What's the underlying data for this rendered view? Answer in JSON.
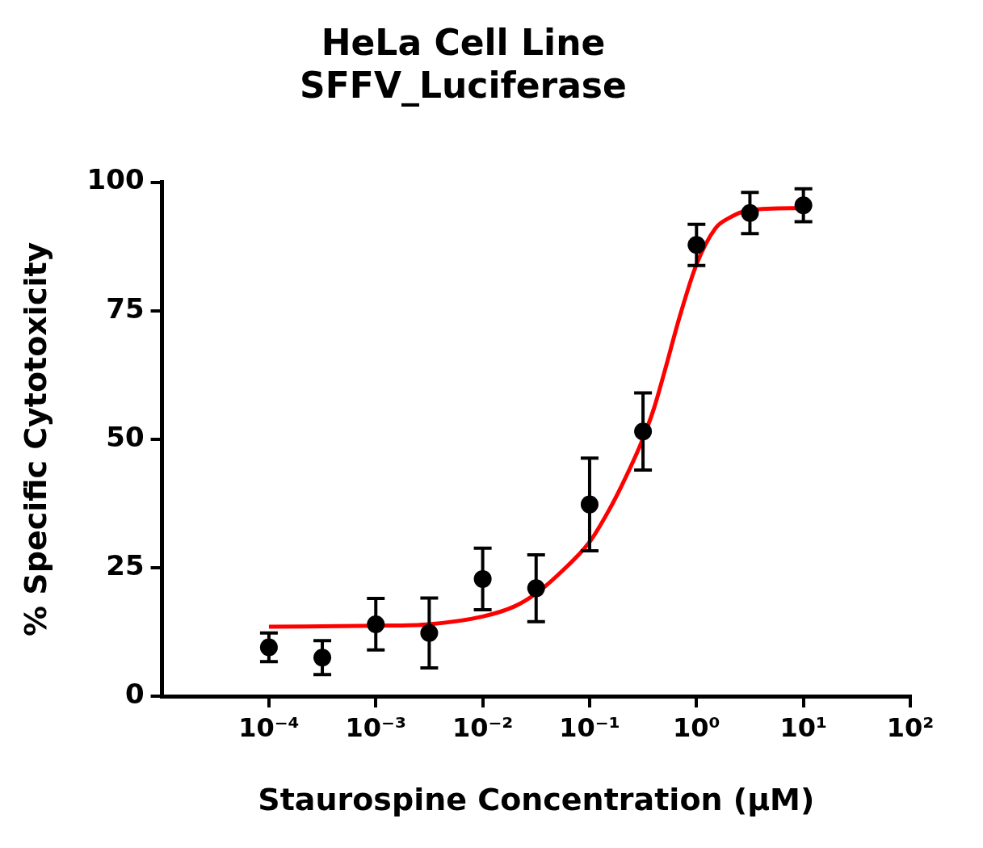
{
  "chart_data": {
    "type": "scatter",
    "title": [
      "HeLa Cell Line",
      "SFFV_Luciferase"
    ],
    "x_label": "Staurospine Concentration (µM)",
    "y_label": "% Specific Cytotoxicity",
    "log": "x",
    "grid": false,
    "xlim": [
      1e-05,
      100
    ],
    "xticks": [
      {
        "value": 0.0001,
        "label": "10⁻⁴"
      },
      {
        "value": 0.001,
        "label": "10⁻³"
      },
      {
        "value": 0.01,
        "label": "10⁻²"
      },
      {
        "value": 0.1,
        "label": "10⁻¹"
      },
      {
        "value": 1,
        "label": "10⁰"
      },
      {
        "value": 10,
        "label": "10¹"
      },
      {
        "value": 100,
        "label": "10²"
      }
    ],
    "ylim": [
      0,
      100
    ],
    "yticks": [
      0,
      25,
      50,
      75,
      100
    ],
    "series": [
      {
        "type": "scatter",
        "color": "#000000",
        "marker": "circle",
        "x": [
          0.0001,
          0.000316,
          0.001,
          0.00316,
          0.01,
          0.0316,
          0.1,
          0.316,
          1,
          3.16,
          10
        ],
        "values": [
          9.5,
          7.5,
          14,
          12.3,
          22.8,
          21,
          37.3,
          51.5,
          87.8,
          94,
          95.5
        ],
        "errors": [
          2.8,
          3.3,
          5,
          6.8,
          6,
          6.5,
          9,
          7.5,
          4,
          4,
          3.2
        ]
      },
      {
        "type": "line",
        "color": "#ff0000",
        "line_style": "solid",
        "x": [
          0.0001,
          0.001,
          0.00316,
          0.01,
          0.02,
          0.0316,
          0.05,
          0.1,
          0.15,
          0.2,
          0.3,
          0.4,
          0.5,
          0.7,
          1,
          1.5,
          2,
          3.16,
          10
        ],
        "values": [
          13.5,
          13.7,
          14,
          15.5,
          17.5,
          20,
          23.5,
          30,
          36,
          41,
          49,
          56,
          63,
          74,
          84,
          91,
          93,
          94.6,
          95
        ]
      }
    ]
  }
}
